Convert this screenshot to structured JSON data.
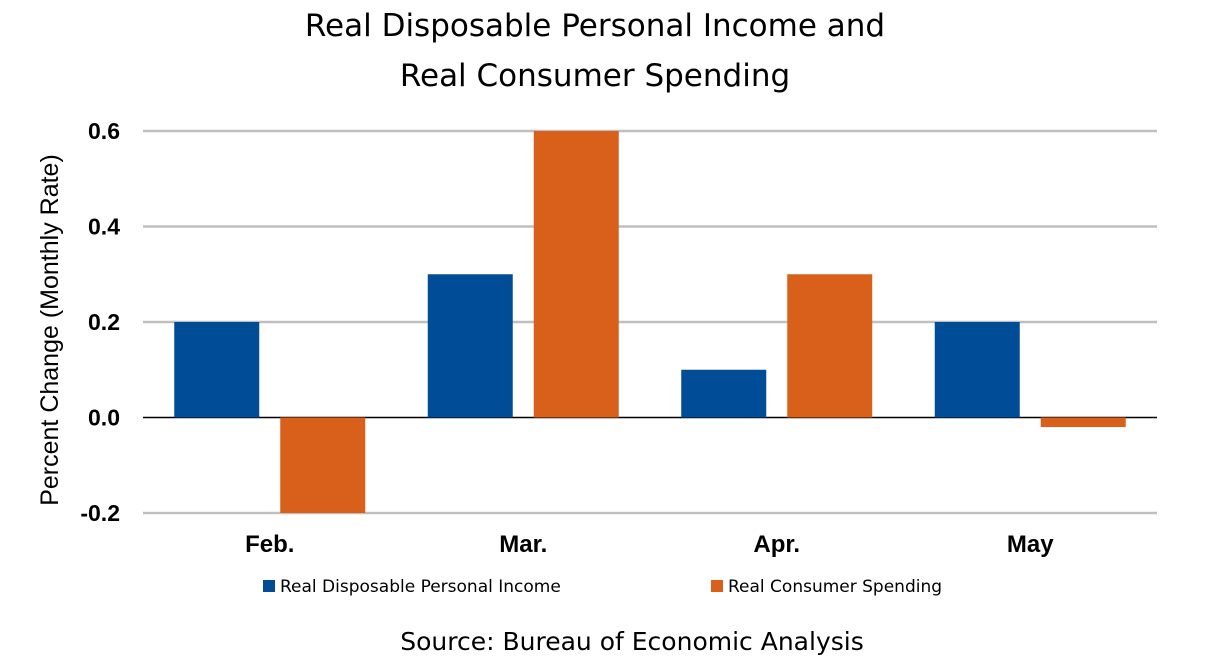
{
  "chart_data": {
    "type": "bar",
    "title_lines": [
      "Real Disposable Personal Income and",
      "Real Consumer Spending"
    ],
    "ylabel": "Percent Change (Monthly Rate)",
    "xlabel": "",
    "categories": [
      "Feb.",
      "Mar.",
      "Apr.",
      "May"
    ],
    "series": [
      {
        "name": "Real Disposable Personal Income",
        "color": "#004C97",
        "values": [
          0.2,
          0.3,
          0.1,
          0.2
        ]
      },
      {
        "name": "Real Consumer Spending",
        "color": "#D9601A",
        "values": [
          -0.2,
          0.6,
          0.3,
          -0.02
        ]
      }
    ],
    "ylim": [
      -0.2,
      0.6
    ],
    "yticks": [
      "-0.2",
      "0.0",
      "0.2",
      "0.4",
      "0.6"
    ],
    "ytick_values": [
      -0.2,
      0,
      0.2,
      0.4,
      0.6
    ],
    "grid": true,
    "legend_position": "bottom",
    "source": "Source:  Bureau of Economic Analysis"
  }
}
